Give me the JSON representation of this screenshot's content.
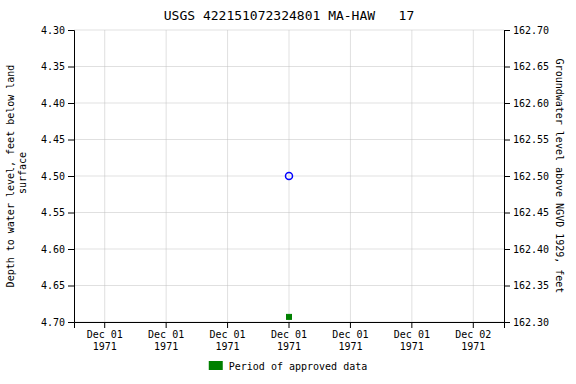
{
  "chart_data": {
    "type": "scatter",
    "title": "USGS 422151072324801 MA-HAW   17",
    "ylabel": "Depth to water level, feet below land\n surface",
    "y2label": "Groundwater level above NGVD 1929, feet",
    "categories": [
      "Dec 01\n1971",
      "Dec 01\n1971",
      "Dec 01\n1971",
      "Dec 01\n1971",
      "Dec 01\n1971",
      "Dec 01\n1971",
      "Dec 02\n1971"
    ],
    "series": [
      {
        "color": "#0000ff",
        "marker": "open-circle",
        "values": [
          null,
          null,
          null,
          4.5,
          null,
          null,
          null
        ]
      },
      {
        "name": "Period of approved data",
        "color": "#008000",
        "marker": "square",
        "values": [
          null,
          null,
          null,
          4.693,
          null,
          null,
          null
        ]
      }
    ],
    "ylim": [
      4.7,
      4.3
    ],
    "yticks": [
      {
        "value": 4.3,
        "label": "4.30"
      },
      4.35,
      {
        "value": 4.4,
        "label": "4.40"
      },
      4.45,
      {
        "value": 4.5,
        "label": "4.50"
      },
      4.55,
      {
        "value": 4.6,
        "label": "4.60"
      },
      4.65,
      {
        "value": 4.7,
        "label": "4.70"
      }
    ],
    "y2lim": [
      162.3,
      162.7
    ],
    "y2ticks": [
      {
        "value": 162.7,
        "label": "162.70"
      },
      162.65,
      {
        "value": 162.6,
        "label": "162.60"
      },
      162.55,
      {
        "value": 162.5,
        "label": "162.50"
      },
      162.45,
      {
        "value": 162.4,
        "label": "162.40"
      },
      162.35,
      {
        "value": 162.3,
        "label": "162.30"
      }
    ],
    "grid": true,
    "legend": "bottom"
  }
}
